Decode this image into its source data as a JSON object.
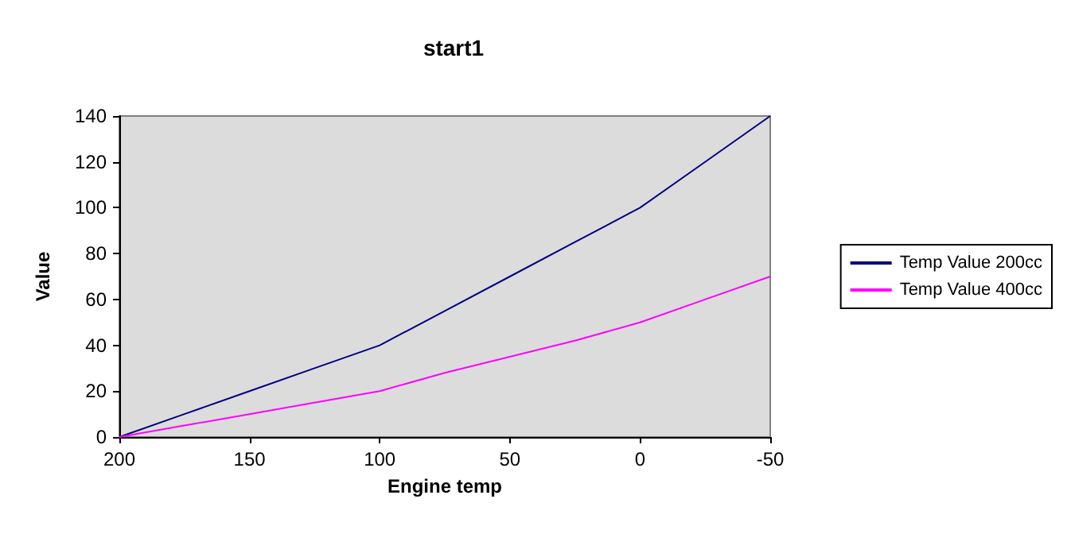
{
  "chart_data": {
    "type": "line",
    "title": "start1",
    "xlabel": "Engine temp",
    "ylabel": "Value",
    "x": [
      200,
      175,
      150,
      125,
      100,
      75,
      50,
      25,
      0,
      -25,
      -50
    ],
    "series": [
      {
        "name": "Temp Value 200cc",
        "color": "#000080",
        "values": [
          0,
          10,
          20,
          30,
          40,
          55,
          70,
          85,
          100,
          120,
          140
        ]
      },
      {
        "name": "Temp Value 400cc",
        "color": "#ff00ff",
        "values": [
          0,
          5,
          10,
          15,
          20,
          28,
          35,
          42,
          50,
          60,
          70
        ]
      }
    ],
    "xlim": [
      200,
      -50
    ],
    "xticks": [
      200,
      150,
      100,
      50,
      0,
      -50
    ],
    "ylim": [
      0,
      140
    ],
    "yticks": [
      0,
      20,
      40,
      60,
      80,
      100,
      120,
      140
    ],
    "grid": false,
    "legend": "right",
    "marker": "none",
    "line_style": "solid"
  }
}
